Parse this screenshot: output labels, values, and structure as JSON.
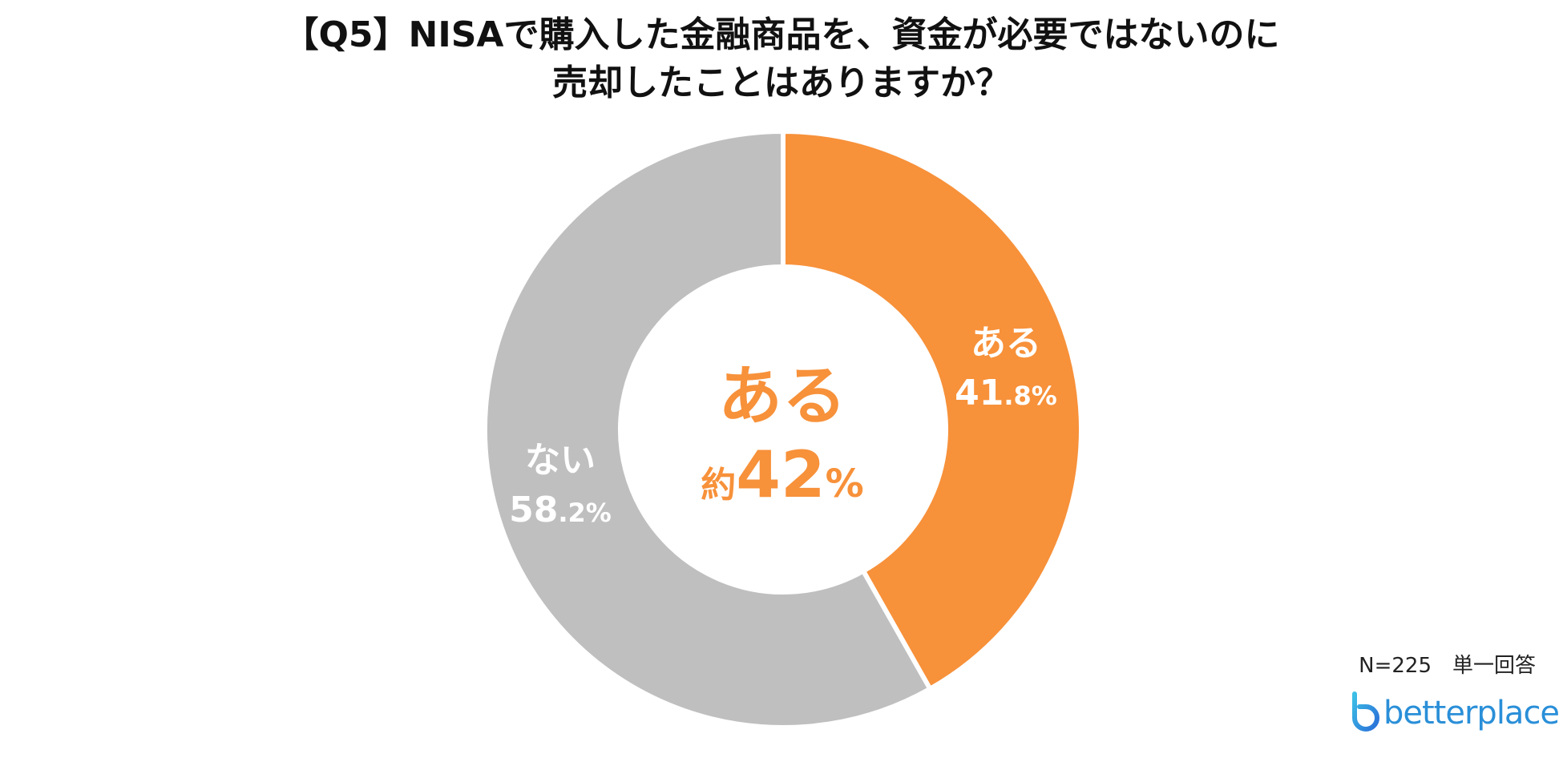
{
  "title": {
    "line1": "【Q5】NISAで購入した金融商品を、資金が必要ではないのに",
    "line2": "売却したことはありますか？"
  },
  "chart_data": {
    "type": "pie",
    "style": "donut",
    "slices": [
      {
        "label": "ある",
        "value": 41.8,
        "display_int": "41",
        "display_dec": ".8%",
        "color": "#f7913a"
      },
      {
        "label": "ない",
        "value": 58.2,
        "display_int": "58",
        "display_dec": ".2%",
        "color": "#bfbfbf"
      }
    ],
    "start": "top",
    "direction": "clockwise",
    "center_label": {
      "title": "ある",
      "prefix": "約",
      "number": "42",
      "suffix": "%"
    }
  },
  "note": "N=225　単一回答",
  "brand": {
    "name": "betterplace",
    "icon": "betterplace-logo-icon",
    "color": "#2a8fd8"
  }
}
